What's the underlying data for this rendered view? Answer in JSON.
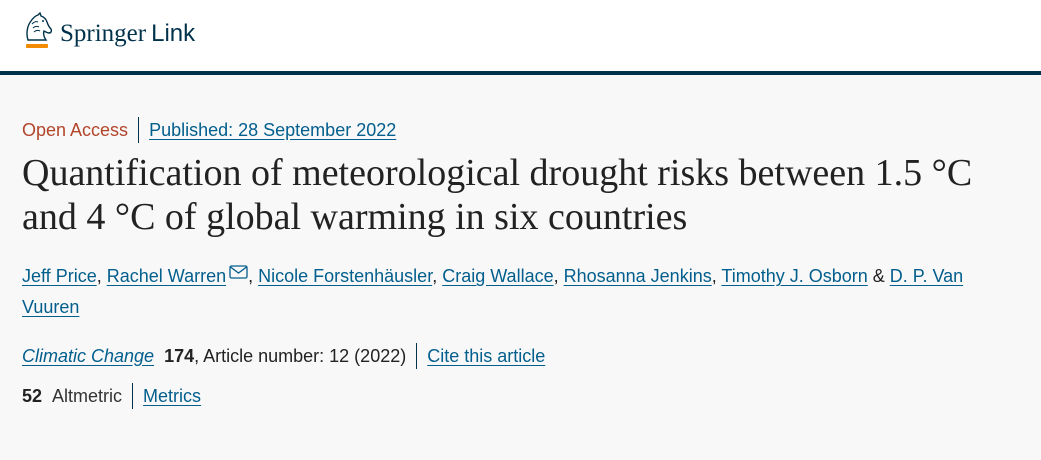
{
  "header": {
    "brand_primary": "Springer",
    "brand_secondary": "Link",
    "accent_color": "#01324b",
    "logo_color": "#f38b00"
  },
  "article": {
    "access": "Open Access",
    "published": "Published: 28 September 2022",
    "title": "Quantification of meteorological drought risks between 1.5 °C and 4 °C of global warming in six countries",
    "authors": [
      {
        "name": "Jeff Price",
        "sep": ", "
      },
      {
        "name": "Rachel Warren",
        "sep": ", "
      },
      {
        "name": "Nicole Forstenhäusler",
        "sep": ", "
      },
      {
        "name": "Craig Wallace",
        "sep": ", "
      },
      {
        "name": "Rhosanna Jenkins",
        "sep": ", "
      },
      {
        "name": "Timothy J. Osborn",
        "sep": " & "
      },
      {
        "name": "D. P. Van Vuuren",
        "sep": ""
      }
    ],
    "journal": "Climatic Change",
    "volume": "174",
    "article_number": ", Article number: 12 (2022)",
    "cite_label": "Cite this article",
    "altmetric_count": "52",
    "altmetric_label": "Altmetric",
    "metrics_label": "Metrics"
  },
  "icons": {
    "logo": "springer-horse-icon",
    "mail": "mail-icon"
  }
}
